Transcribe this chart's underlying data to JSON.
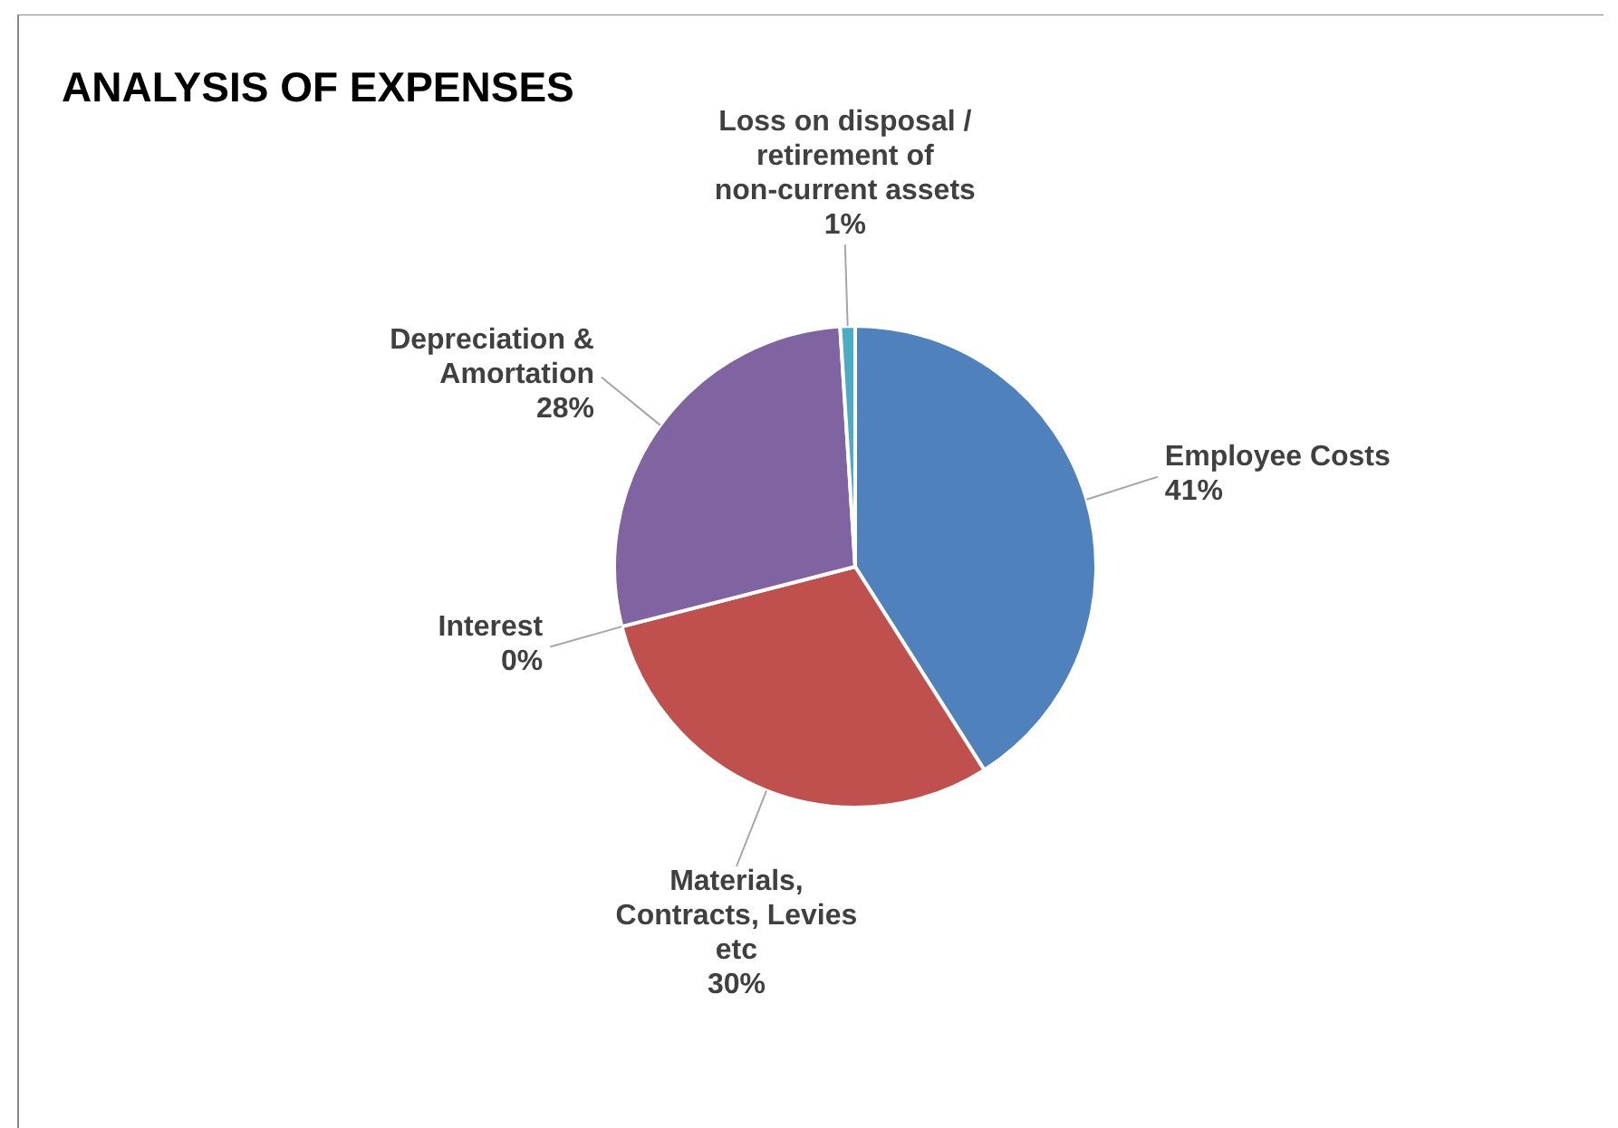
{
  "chart_data": {
    "type": "pie",
    "title": "ANALYSIS OF EXPENSES",
    "categories": [
      "Employee Costs",
      "Materials, Contracts, Levies etc",
      "Interest",
      "Depreciation & Amortation",
      "Loss on disposal / retirement of non-current assets"
    ],
    "values": [
      41,
      30,
      0,
      28,
      1
    ],
    "colors": [
      "#4f81bd",
      "#c0504d",
      "#9bbb59",
      "#8064a2",
      "#4bacc6"
    ],
    "value_labels": [
      "41%",
      "30%",
      "0%",
      "28%",
      "1%"
    ]
  }
}
